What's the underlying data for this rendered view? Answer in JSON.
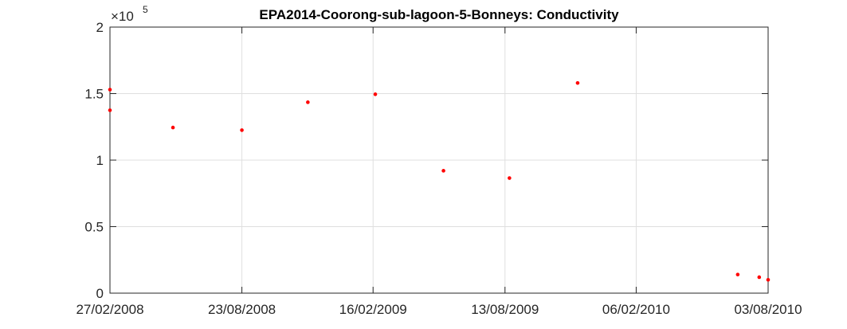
{
  "chart_data": {
    "type": "scatter",
    "title": "EPA2014-Coorong-sub-lagoon-5-Bonneys: Conductivity",
    "xlabel": "",
    "ylabel": "",
    "y_multiplier": {
      "base": "×10",
      "exponent": "5"
    },
    "x_ticks": [
      "27/02/2008",
      "23/08/2008",
      "16/02/2009",
      "13/08/2009",
      "06/02/2010",
      "03/08/2010"
    ],
    "y_ticks": [
      "0",
      "0.5",
      "1",
      "1.5",
      "2"
    ],
    "xlim": [
      "2008-02-27",
      "2010-08-03"
    ],
    "ylim": [
      0,
      200000
    ],
    "grid": true,
    "series": [
      {
        "color": "#ff0000",
        "points": [
          {
            "x": "2008-02-27",
            "y": 153000
          },
          {
            "x": "2008-02-27",
            "y": 137500
          },
          {
            "x": "2008-05-22",
            "y": 124500
          },
          {
            "x": "2008-08-23",
            "y": 122500
          },
          {
            "x": "2008-11-20",
            "y": 143500
          },
          {
            "x": "2009-02-19",
            "y": 149500
          },
          {
            "x": "2009-05-22",
            "y": 92000
          },
          {
            "x": "2009-08-19",
            "y": 86500
          },
          {
            "x": "2009-11-19",
            "y": 158000
          },
          {
            "x": "2010-06-23",
            "y": 14000
          },
          {
            "x": "2010-07-22",
            "y": 12000
          },
          {
            "x": "2010-08-03",
            "y": 10000
          }
        ]
      }
    ]
  }
}
